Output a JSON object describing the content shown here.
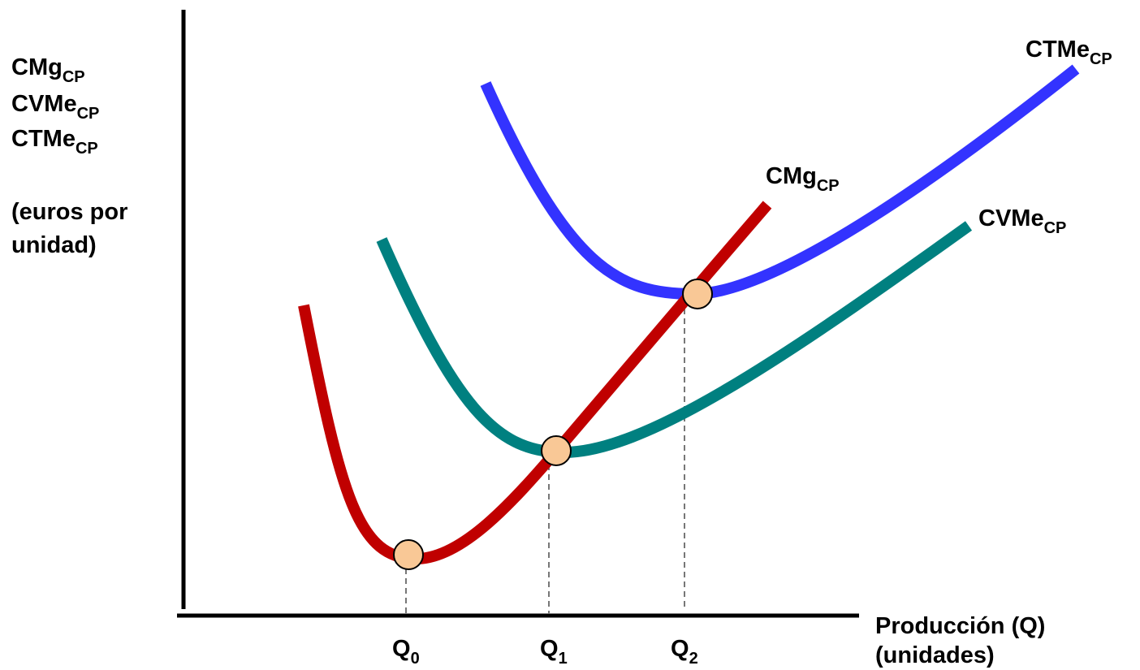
{
  "y_axis_label": {
    "line1_main": "CMg",
    "line1_sub": "CP",
    "line2_main": "CVMe",
    "line2_sub": "CP",
    "line3_main": "CTMe",
    "line3_sub": "CP",
    "units_line1": "(euros por",
    "units_line2": "unidad)"
  },
  "x_axis_label": {
    "line1": "Producción (Q)",
    "line2": "(unidades)"
  },
  "curves": {
    "cmg": {
      "main": "CMg",
      "sub": "CP",
      "color": "#c00000"
    },
    "cvme": {
      "main": "CVMe",
      "sub": "CP",
      "color": "#008080"
    },
    "ctme": {
      "main": "CTMe",
      "sub": "CP",
      "color": "#3333ff"
    }
  },
  "x_ticks": [
    {
      "main": "Q",
      "sub": "0"
    },
    {
      "main": "Q",
      "sub": "1"
    },
    {
      "main": "Q",
      "sub": "2"
    }
  ],
  "point_color": "#f9c896"
}
